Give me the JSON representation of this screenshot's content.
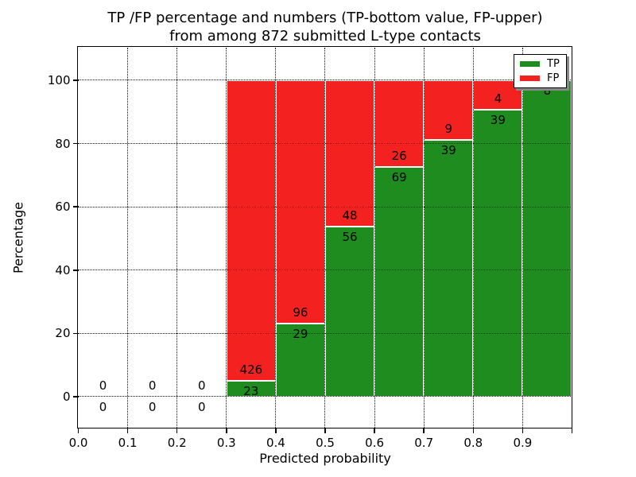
{
  "title": {
    "line1": "TP /FP percentage and numbers (TP-bottom value, FP-upper)",
    "line2": "from among 872 submitted L-type contacts"
  },
  "colors": {
    "tp": "#1e8c1e",
    "fp": "#f42121",
    "grid": "#151515",
    "bar_edge": "#ffffff",
    "legend_shadow": "#888888",
    "text": "#000000"
  },
  "legend": {
    "position": "upper-right",
    "items": [
      {
        "label": "TP",
        "color_key": "tp"
      },
      {
        "label": "FP",
        "color_key": "fp"
      }
    ]
  },
  "chart_data": {
    "type": "bar",
    "stacked": true,
    "title": "TP /FP percentage and numbers (TP-bottom value, FP-upper)\nfrom among 872 submitted L-type contacts",
    "xlabel": "Predicted probability",
    "ylabel": "Percentage",
    "total_submitted": 872,
    "xlim": [
      0.0,
      1.0
    ],
    "ylim": [
      -9.8,
      110.3
    ],
    "xticks": [
      "0.0",
      "0.1",
      "0.2",
      "0.3",
      "0.4",
      "0.5",
      "0.6",
      "0.7",
      "0.8",
      "0.9"
    ],
    "yticks": [
      "0",
      "20",
      "40",
      "60",
      "80",
      "100"
    ],
    "ytick_values": [
      0,
      20,
      40,
      60,
      80,
      100
    ],
    "grid": "dotted",
    "bin_width": 0.1,
    "bar_total_pct": 100,
    "series": [
      {
        "name": "TP",
        "values": [
          0,
          0,
          0,
          23,
          29,
          56,
          69,
          39,
          39,
          8
        ]
      },
      {
        "name": "FP",
        "values": [
          0,
          0,
          0,
          426,
          96,
          48,
          26,
          9,
          4,
          0
        ]
      }
    ],
    "bins": [
      {
        "x0": 0.0,
        "x1": 0.1,
        "tp_count": 0,
        "fp_count": 0,
        "tp_pct": 0
      },
      {
        "x0": 0.1,
        "x1": 0.2,
        "tp_count": 0,
        "fp_count": 0,
        "tp_pct": 0
      },
      {
        "x0": 0.2,
        "x1": 0.3,
        "tp_count": 0,
        "fp_count": 0,
        "tp_pct": 0
      },
      {
        "x0": 0.3,
        "x1": 0.4,
        "tp_count": 23,
        "fp_count": 426,
        "tp_pct": 5.12
      },
      {
        "x0": 0.4,
        "x1": 0.5,
        "tp_count": 29,
        "fp_count": 96,
        "tp_pct": 23.2
      },
      {
        "x0": 0.5,
        "x1": 0.6,
        "tp_count": 56,
        "fp_count": 48,
        "tp_pct": 53.85
      },
      {
        "x0": 0.6,
        "x1": 0.7,
        "tp_count": 69,
        "fp_count": 26,
        "tp_pct": 72.63
      },
      {
        "x0": 0.7,
        "x1": 0.8,
        "tp_count": 39,
        "fp_count": 9,
        "tp_pct": 81.25
      },
      {
        "x0": 0.8,
        "x1": 0.9,
        "tp_count": 39,
        "fp_count": 4,
        "tp_pct": 90.7
      },
      {
        "x0": 0.9,
        "x1": 1.0,
        "tp_count": 8,
        "fp_count": 0,
        "tp_pct": 100
      }
    ]
  }
}
